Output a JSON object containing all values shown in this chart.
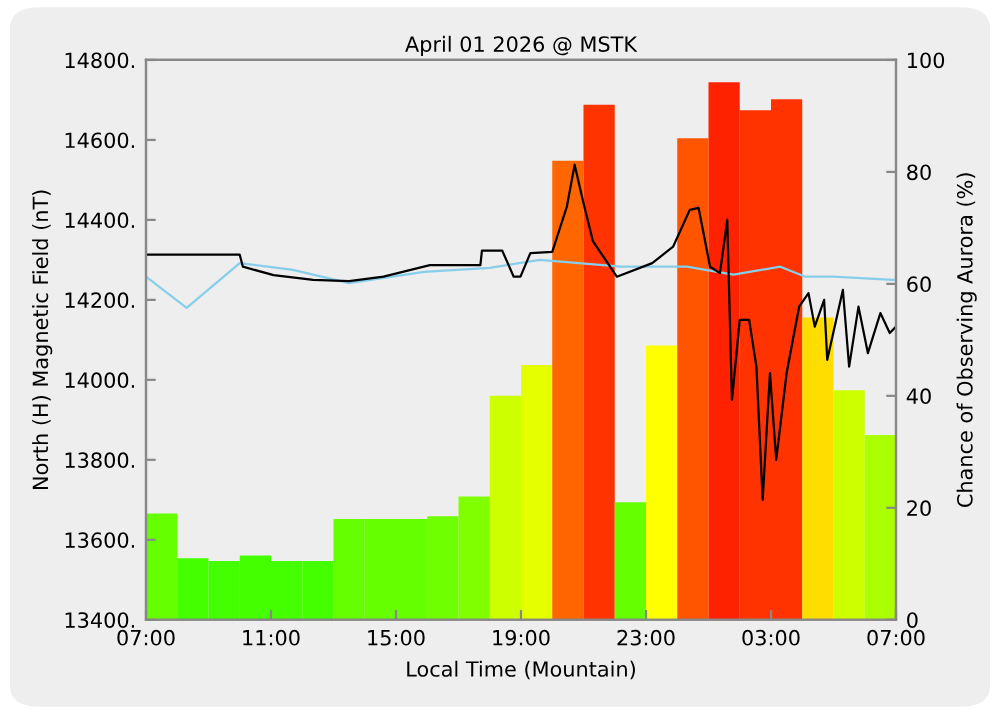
{
  "chart_data": {
    "type": "line",
    "title": "April 01 2026 @ MSTK",
    "xlabel": "Local Time (Mountain)",
    "ylabel": "North (H) Magnetic Field (nT)",
    "y2label": "Chance of Observing Aurora (%)",
    "xlim": [
      "2026-04-01T07:00",
      "2026-04-02T07:00"
    ],
    "xticks": [
      {
        "value": "2026-04-01T07:00",
        "label": "07:00"
      },
      {
        "value": "2026-04-01T11:00",
        "label": "11:00"
      },
      {
        "value": "2026-04-01T15:00",
        "label": "15:00"
      },
      {
        "value": "2026-04-01T19:00",
        "label": "19:00"
      },
      {
        "value": "2026-04-01T23:00",
        "label": "23:00"
      },
      {
        "value": "2026-04-02T03:00",
        "label": "03:00"
      },
      {
        "value": "2026-04-02T07:00",
        "label": "07:00"
      }
    ],
    "ylim": [
      13400,
      14800
    ],
    "yticks": [
      {
        "value": 13400,
        "label": "13400."
      },
      {
        "value": 13600,
        "label": "13600."
      },
      {
        "value": 13800,
        "label": "13800."
      },
      {
        "value": 14000,
        "label": "14000."
      },
      {
        "value": 14200,
        "label": "14200."
      },
      {
        "value": 14400,
        "label": "14400."
      },
      {
        "value": 14600,
        "label": "14600."
      },
      {
        "value": 14800,
        "label": "14800."
      }
    ],
    "y2lim": [
      0,
      100
    ],
    "y2ticks": [
      0,
      20,
      40,
      60,
      80,
      100
    ],
    "grid": false,
    "legend": false,
    "series": [
      {
        "type": "bar",
        "axis": "y2",
        "x": [
          "2026-04-01T07:30",
          "2026-04-01T08:30",
          "2026-04-01T09:30",
          "2026-04-01T10:30",
          "2026-04-01T11:30",
          "2026-04-01T12:30",
          "2026-04-01T13:30",
          "2026-04-01T14:30",
          "2026-04-01T15:30",
          "2026-04-01T16:30",
          "2026-04-01T17:30",
          "2026-04-01T18:30",
          "2026-04-01T19:30",
          "2026-04-01T20:30",
          "2026-04-01T21:30",
          "2026-04-01T22:30",
          "2026-04-01T23:30",
          "2026-04-02T00:30",
          "2026-04-02T01:30",
          "2026-04-02T02:30",
          "2026-04-02T03:30",
          "2026-04-02T04:30",
          "2026-04-02T05:30",
          "2026-04-02T06:30"
        ],
        "values": [
          19,
          11,
          10.5,
          11.5,
          10.5,
          10.5,
          18,
          18,
          18,
          18.5,
          22,
          40,
          45.5,
          82,
          92,
          21,
          49,
          86,
          96,
          91,
          93,
          54,
          41,
          33
        ],
        "colors": [
          "#66ff00",
          "#44ff00",
          "#44ff00",
          "#44ff00",
          "#44ff00",
          "#44ff00",
          "#66ff00",
          "#66ff00",
          "#66ff00",
          "#6fff00",
          "#7fff00",
          "#ccff00",
          "#e5ff00",
          "#ff6600",
          "#ff3300",
          "#66ff00",
          "#ffff00",
          "#ff5500",
          "#ff2200",
          "#ff3300",
          "#ff3300",
          "#ffdd00",
          "#ccff00",
          "#aaff00"
        ]
      },
      {
        "type": "line",
        "axis": "y",
        "color": "#87ceeb",
        "x": [
          "2026-04-01T07:00",
          "2026-04-01T08:18",
          "2026-04-01T10:00",
          "2026-04-01T11:42",
          "2026-04-01T13:30",
          "2026-04-01T15:54",
          "2026-04-01T18:00",
          "2026-04-01T19:36",
          "2026-04-01T22:12",
          "2026-04-02T00:18",
          "2026-04-02T01:48",
          "2026-04-02T03:18",
          "2026-04-02T04:06",
          "2026-04-02T05:00",
          "2026-04-02T06:54",
          "2026-04-02T07:00"
        ],
        "values": [
          14258,
          14180,
          14292,
          14275,
          14242,
          14270,
          14280,
          14300,
          14283,
          14283,
          14263,
          14283,
          14258,
          14258,
          14250,
          14250
        ]
      },
      {
        "axis": "y",
        "color": "#000000",
        "x": [
          "2026-04-01T07:04",
          "2026-04-01T10:00",
          "2026-04-01T10:06",
          "2026-04-01T11:05",
          "2026-04-01T12:21",
          "2026-04-01T13:30",
          "2026-04-01T14:36",
          "2026-04-01T16:05",
          "2026-04-01T17:42",
          "2026-04-01T17:45",
          "2026-04-01T18:24",
          "2026-04-01T18:46",
          "2026-04-01T18:59",
          "2026-04-01T19:18",
          "2026-04-01T20:00",
          "2026-04-01T20:28",
          "2026-04-01T20:43",
          "2026-04-01T20:59",
          "2026-04-01T21:18",
          "2026-04-01T22:04",
          "2026-04-01T23:12",
          "2026-04-01T23:52",
          "2026-04-02T00:24",
          "2026-04-02T00:41",
          "2026-04-02T01:03",
          "2026-04-02T01:22",
          "2026-04-02T01:36",
          "2026-04-02T01:45",
          "2026-04-02T02:00",
          "2026-04-02T02:18",
          "2026-04-02T02:32",
          "2026-04-02T02:44",
          "2026-04-02T02:58",
          "2026-04-02T03:10",
          "2026-04-02T03:30",
          "2026-04-02T03:54",
          "2026-04-02T04:12",
          "2026-04-02T04:24",
          "2026-04-02T04:42",
          "2026-04-02T04:48",
          "2026-04-02T05:18",
          "2026-04-02T05:30",
          "2026-04-02T05:48",
          "2026-04-02T06:06",
          "2026-04-02T06:30",
          "2026-04-02T06:48",
          "2026-04-02T07:00"
        ],
        "values": [
          14313,
          14313,
          14283,
          14262,
          14250,
          14247,
          14258,
          14287,
          14287,
          14323,
          14323,
          14258,
          14258,
          14317,
          14320,
          14433,
          14538,
          14447,
          14347,
          14258,
          14292,
          14333,
          14425,
          14430,
          14283,
          14267,
          14400,
          13950,
          14150,
          14150,
          14033,
          13700,
          14017,
          13800,
          14017,
          14183,
          14217,
          14133,
          14200,
          14050,
          14225,
          14033,
          14183,
          14067,
          14167,
          14117,
          14133
        ]
      }
    ]
  }
}
